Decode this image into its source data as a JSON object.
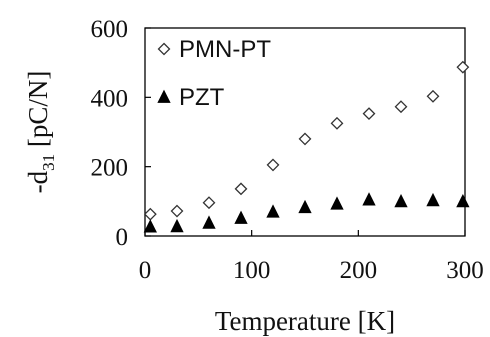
{
  "chart_data": {
    "type": "scatter",
    "title": "",
    "xlabel": "Temperature [K]",
    "ylabel_prefix": "-d",
    "ylabel_subscript": "31",
    "ylabel_suffix": " [pC/N]",
    "xlim": [
      0,
      300
    ],
    "ylim": [
      0,
      600
    ],
    "xticks": [
      0,
      100,
      200,
      300
    ],
    "yticks": [
      0,
      200,
      400,
      600
    ],
    "xtick_labels": [
      "0",
      "100",
      "200",
      "300"
    ],
    "ytick_labels": [
      "0",
      "200",
      "400",
      "600"
    ],
    "grid": false,
    "legend_position": "top-left",
    "series": [
      {
        "name": "PMN-PT",
        "marker": "open-diamond",
        "color": "#333333",
        "x": [
          5,
          30,
          60,
          90,
          120,
          150,
          180,
          210,
          240,
          270,
          298
        ],
        "y": [
          63,
          72,
          96,
          136,
          205,
          280,
          325,
          353,
          373,
          403,
          487
        ]
      },
      {
        "name": "PZT",
        "marker": "filled-triangle",
        "color": "#000000",
        "x": [
          5,
          30,
          60,
          90,
          120,
          150,
          180,
          210,
          240,
          270,
          298
        ],
        "y": [
          27,
          28,
          38,
          52,
          70,
          83,
          93,
          105,
          100,
          103,
          100
        ]
      }
    ]
  }
}
